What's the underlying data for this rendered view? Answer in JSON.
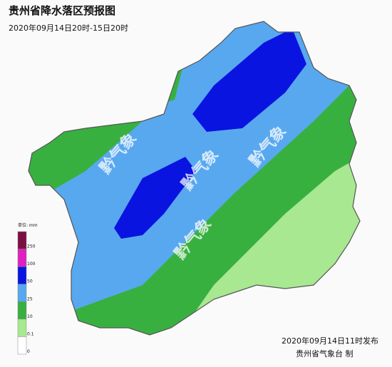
{
  "header": {
    "title": "贵州省降水落区预报图",
    "subtitle": "2020年09月14日20时-15日20时"
  },
  "legend": {
    "unit": "单位: mm",
    "items": [
      {
        "label": "250",
        "color": "#7b1040"
      },
      {
        "label": "100",
        "color": "#e020c0"
      },
      {
        "label": "50",
        "color": "#0a14e0"
      },
      {
        "label": "25",
        "color": "#58a8f0"
      },
      {
        "label": "10",
        "color": "#38b040"
      },
      {
        "label": "0.1",
        "color": "#a8e890"
      },
      {
        "label": "0",
        "color": "#ffffff"
      }
    ]
  },
  "watermarks": [
    "黔气象",
    "黔气象",
    "黔气象",
    "黔气象"
  ],
  "footer": {
    "issued": "2020年09月14日11时发布",
    "agency": "贵州省气象台 制"
  }
}
